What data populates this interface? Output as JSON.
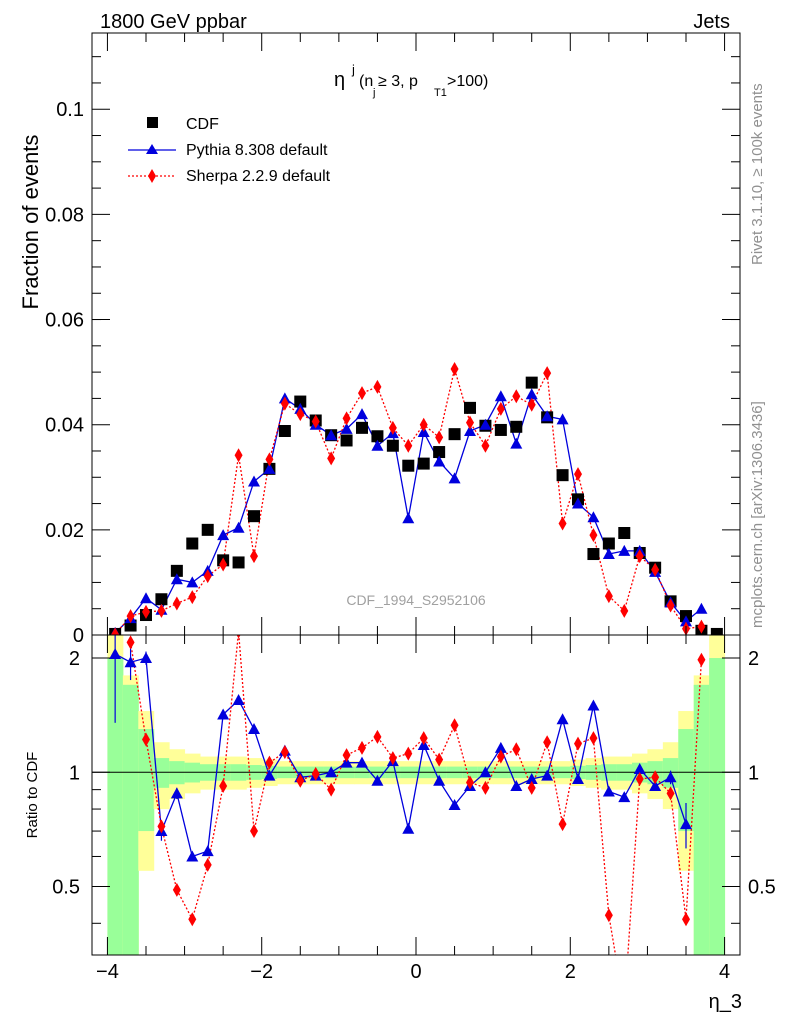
{
  "header": {
    "left": "1800 GeV ppbar",
    "right": "Jets"
  },
  "side_labels": {
    "rivet": "Rivet 3.1.10, ≥ 100k events",
    "mcplots": "mcplots.cern.ch [arXiv:1306.3436]"
  },
  "chart_data": [
    {
      "type": "scatter",
      "title": "η^j (n_j ≥ 3, p_T1 > 100)",
      "title_main": "η",
      "title_sup": "j",
      "title_cut_a": "(n",
      "title_cut_a_sub": "j",
      "title_cut_b": " ≥ 3, p",
      "title_cut_b_sub": "T1",
      "title_cut_c": ">100)",
      "ylabel": "Fraction of events",
      "watermark": "CDF_1994_S2952106",
      "xlim": [
        -4.2,
        4.2
      ],
      "ylim": [
        0,
        0.1145
      ],
      "y_ticks": [
        0,
        0.02,
        0.04,
        0.06,
        0.08,
        0.1
      ],
      "y_tick_labels": [
        "0",
        "0.02",
        "0.04",
        "0.06",
        "0.08",
        "0.1"
      ],
      "legend": {
        "position": "top-left"
      },
      "series": [
        {
          "name": "CDF",
          "style": "square",
          "color": "#000000",
          "x": [
            -3.9,
            -3.7,
            -3.5,
            -3.3,
            -3.1,
            -2.9,
            -2.7,
            -2.5,
            -2.3,
            -2.1,
            -1.9,
            -1.7,
            -1.5,
            -1.3,
            -1.1,
            -0.9,
            -0.7,
            -0.5,
            -0.3,
            -0.1,
            0.1,
            0.3,
            0.5,
            0.7,
            0.9,
            1.1,
            1.3,
            1.5,
            1.7,
            1.9,
            2.1,
            2.3,
            2.5,
            2.7,
            2.9,
            3.1,
            3.3,
            3.5,
            3.7,
            3.9
          ],
          "y": [
            0.0002,
            0.0018,
            0.0038,
            0.0068,
            0.0122,
            0.0174,
            0.02,
            0.0142,
            0.0138,
            0.0226,
            0.0316,
            0.0388,
            0.0444,
            0.0408,
            0.038,
            0.037,
            0.0394,
            0.0378,
            0.036,
            0.0322,
            0.0326,
            0.0348,
            0.0382,
            0.0432,
            0.0398,
            0.039,
            0.0396,
            0.048,
            0.0414,
            0.0304,
            0.0258,
            0.0154,
            0.0174,
            0.0194,
            0.0156,
            0.0128,
            0.0064,
            0.0036,
            0.0008,
            0.0002
          ]
        },
        {
          "name": "Pythia 8.308 default",
          "style": "triangle-line",
          "color": "#0000dd",
          "x": [
            -3.9,
            -3.7,
            -3.5,
            -3.3,
            -3.1,
            -2.9,
            -2.7,
            -2.5,
            -2.3,
            -2.1,
            -1.9,
            -1.7,
            -1.5,
            -1.3,
            -1.1,
            -0.9,
            -0.7,
            -0.5,
            -0.3,
            -0.1,
            0.1,
            0.3,
            0.5,
            0.7,
            0.9,
            1.1,
            1.3,
            1.5,
            1.7,
            1.9,
            2.1,
            2.3,
            2.5,
            2.7,
            2.9,
            3.1,
            3.3,
            3.5,
            3.7
          ],
          "y": [
            0.0004,
            0.0032,
            0.007,
            0.0048,
            0.0106,
            0.01,
            0.0122,
            0.019,
            0.0204,
            0.0292,
            0.0316,
            0.045,
            0.043,
            0.04,
            0.038,
            0.0392,
            0.042,
            0.036,
            0.0384,
            0.0222,
            0.0386,
            0.033,
            0.0298,
            0.0388,
            0.04,
            0.0454,
            0.0364,
            0.0458,
            0.0416,
            0.041,
            0.025,
            0.0224,
            0.0154,
            0.016,
            0.016,
            0.012,
            0.0062,
            0.0026,
            0.005
          ]
        },
        {
          "name": "Sherpa 2.2.9 default",
          "style": "diamond-dotted",
          "color": "#ff0000",
          "x": [
            -3.9,
            -3.7,
            -3.5,
            -3.3,
            -3.1,
            -2.9,
            -2.7,
            -2.5,
            -2.3,
            -2.1,
            -1.9,
            -1.7,
            -1.5,
            -1.3,
            -1.1,
            -0.9,
            -0.7,
            -0.5,
            -0.3,
            -0.1,
            0.1,
            0.3,
            0.5,
            0.7,
            0.9,
            1.1,
            1.3,
            1.5,
            1.7,
            1.9,
            2.1,
            2.3,
            2.5,
            2.7,
            2.9,
            3.1,
            3.3,
            3.5,
            3.7
          ],
          "y": [
            0.0001,
            0.0036,
            0.0044,
            0.0046,
            0.006,
            0.0072,
            0.0112,
            0.0134,
            0.0342,
            0.015,
            0.0334,
            0.044,
            0.042,
            0.0406,
            0.0336,
            0.0412,
            0.046,
            0.0472,
            0.0394,
            0.036,
            0.04,
            0.0376,
            0.0506,
            0.0404,
            0.036,
            0.043,
            0.0454,
            0.0438,
            0.0498,
            0.0212,
            0.0306,
            0.019,
            0.0074,
            0.0046,
            0.015,
            0.0124,
            0.0056,
            0.0012,
            0.0016
          ]
        }
      ]
    },
    {
      "type": "scatter",
      "ylabel": "Ratio to CDF",
      "xlabel": "η_3",
      "xlim": [
        -4.2,
        4.2
      ],
      "ylim": [
        0.33,
        2.3
      ],
      "log_scale_y": true,
      "x_ticks": [
        -4,
        -2,
        0,
        2,
        4
      ],
      "x_tick_labels": [
        "−4",
        "−2",
        "0",
        "2",
        "4"
      ],
      "y_ticks": [
        0.5,
        1,
        2
      ],
      "y_tick_labels": [
        "0.5",
        "1",
        "2"
      ],
      "uncertainty_band": {
        "x_edges": [
          -4.0,
          -3.8,
          -3.6,
          -3.4,
          -3.2,
          -3.0,
          -2.8,
          -2.6,
          -2.4,
          -2.2,
          -2.0,
          -1.8,
          -1.6,
          -1.4,
          -1.2,
          -1.0,
          -0.8,
          -0.6,
          -0.4,
          -0.2,
          0.0,
          0.2,
          0.4,
          0.6,
          0.8,
          1.0,
          1.2,
          1.4,
          1.6,
          1.8,
          2.0,
          2.2,
          2.4,
          2.6,
          2.8,
          3.0,
          3.2,
          3.4,
          3.6,
          3.8,
          4.0
        ],
        "yellow_half_width": [
          1.5,
          0.8,
          0.45,
          0.2,
          0.15,
          0.12,
          0.1,
          0.1,
          0.1,
          0.09,
          0.08,
          0.07,
          0.07,
          0.07,
          0.07,
          0.07,
          0.07,
          0.07,
          0.07,
          0.07,
          0.07,
          0.07,
          0.07,
          0.07,
          0.07,
          0.07,
          0.07,
          0.07,
          0.07,
          0.07,
          0.08,
          0.09,
          0.1,
          0.1,
          0.12,
          0.15,
          0.2,
          0.45,
          0.8,
          1.5
        ],
        "green_half_width": [
          1.0,
          0.7,
          0.3,
          0.09,
          0.07,
          0.06,
          0.05,
          0.05,
          0.05,
          0.045,
          0.04,
          0.035,
          0.035,
          0.035,
          0.035,
          0.035,
          0.035,
          0.035,
          0.035,
          0.035,
          0.035,
          0.035,
          0.035,
          0.035,
          0.035,
          0.035,
          0.035,
          0.035,
          0.035,
          0.035,
          0.04,
          0.045,
          0.05,
          0.05,
          0.06,
          0.07,
          0.09,
          0.3,
          0.7,
          1.0
        ],
        "colors": {
          "yellow": "#ffff99",
          "green": "#99ff99"
        }
      },
      "series": [
        {
          "name": "Pythia 8.308 default",
          "style": "triangle-line",
          "color": "#0000dd",
          "x": [
            -3.9,
            -3.7,
            -3.5,
            -3.3,
            -3.1,
            -2.9,
            -2.7,
            -2.5,
            -2.3,
            -2.1,
            -1.9,
            -1.7,
            -1.5,
            -1.3,
            -1.1,
            -0.9,
            -0.7,
            -0.5,
            -0.3,
            -0.1,
            0.1,
            0.3,
            0.5,
            0.7,
            0.9,
            1.1,
            1.3,
            1.5,
            1.7,
            1.9,
            2.1,
            2.3,
            2.5,
            2.7,
            2.9,
            3.1,
            3.3,
            3.5
          ],
          "y": [
            2.05,
            1.95,
            2.0,
            0.7,
            0.88,
            0.6,
            0.62,
            1.42,
            1.55,
            1.3,
            0.98,
            1.14,
            0.97,
            0.98,
            1.0,
            1.06,
            1.06,
            0.95,
            1.07,
            0.71,
            1.18,
            0.95,
            0.82,
            0.92,
            1.0,
            1.16,
            0.92,
            0.96,
            0.98,
            1.38,
            0.96,
            1.5,
            0.89,
            0.86,
            1.02,
            0.92,
            0.97,
            0.73
          ],
          "err": [
            0.7,
            0.2,
            0.08,
            0.04,
            0.03,
            0.02,
            0.02,
            0.03,
            0.03,
            0.02,
            0.015,
            0.01,
            0.01,
            0.01,
            0.01,
            0.01,
            0.01,
            0.01,
            0.01,
            0.01,
            0.01,
            0.01,
            0.01,
            0.01,
            0.01,
            0.01,
            0.01,
            0.01,
            0.01,
            0.015,
            0.02,
            0.02,
            0.02,
            0.02,
            0.02,
            0.02,
            0.04,
            0.1
          ]
        },
        {
          "name": "Sherpa 2.2.9 default",
          "style": "diamond-dotted",
          "color": "#ff0000",
          "x": [
            -3.7,
            -3.5,
            -3.3,
            -3.1,
            -2.9,
            -2.7,
            -2.5,
            -2.3,
            -2.1,
            -1.9,
            -1.7,
            -1.5,
            -1.3,
            -1.1,
            -0.9,
            -0.7,
            -0.5,
            -0.3,
            -0.1,
            0.1,
            0.3,
            0.5,
            0.7,
            0.9,
            1.1,
            1.3,
            1.5,
            1.7,
            1.9,
            2.1,
            2.3,
            2.5,
            2.7,
            2.9,
            3.1,
            3.3,
            3.5,
            3.7
          ],
          "y": [
            2.2,
            1.22,
            0.72,
            0.49,
            0.41,
            0.57,
            0.92,
            2.35,
            0.7,
            1.06,
            1.13,
            0.95,
            0.99,
            0.9,
            1.11,
            1.16,
            1.24,
            1.09,
            1.12,
            1.23,
            1.08,
            1.33,
            0.94,
            0.91,
            1.1,
            1.15,
            0.91,
            1.2,
            0.73,
            1.19,
            1.23,
            0.42,
            0.24,
            0.96,
            0.97,
            0.88,
            0.41,
            1.98
          ]
        }
      ]
    }
  ]
}
